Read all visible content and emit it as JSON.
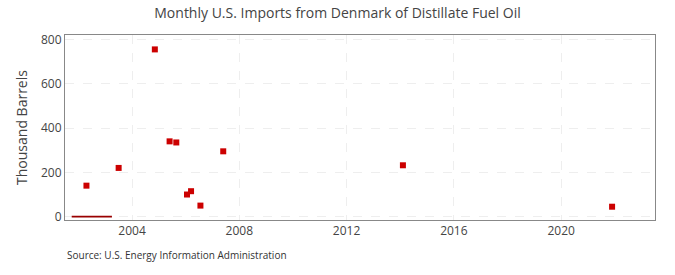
{
  "chart_data": {
    "type": "scatter",
    "title": "Monthly U.S. Imports from Denmark of Distillate Fuel Oil",
    "ylabel": "Thousand Barrels",
    "annotations": [
      "Source: U.S. Energy Information Administration"
    ],
    "series": [
      {
        "type": "scatter",
        "marker": "square",
        "color": "#cc0000",
        "x": [
          2002.3,
          2003.5,
          2004.85,
          2005.4,
          2005.65,
          2006.05,
          2006.2,
          2006.55,
          2007.4,
          2014.1,
          2021.9
        ],
        "values": [
          140,
          220,
          755,
          340,
          335,
          100,
          115,
          50,
          295,
          232,
          45
        ]
      },
      {
        "type": "bar",
        "orientation": "horizontal",
        "color": "#990000",
        "start": [
          2001.75
        ],
        "end": [
          2003.25
        ],
        "values": [
          0
        ],
        "height": [
          8
        ]
      }
    ],
    "xlim": [
      2001.5,
      2023.5
    ],
    "xticks": [
      2004,
      2008,
      2012,
      2016,
      2020
    ],
    "ylim": [
      -15,
      820
    ],
    "yticks": [
      0,
      200,
      400,
      600,
      800
    ],
    "grid": true
  }
}
